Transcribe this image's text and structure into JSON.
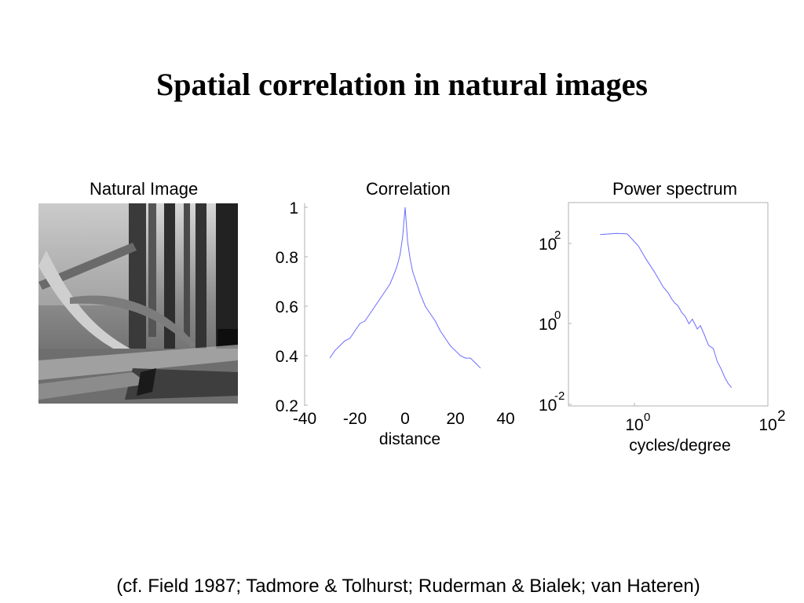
{
  "slide": {
    "title": "Spatial correlation in natural images",
    "citation": "(cf. Field 1987; Tadmore & Tolhurst; Ruderman & Bialek; van Hateren)"
  },
  "image_panel": {
    "title": "Natural Image"
  },
  "chart_data": [
    {
      "type": "line",
      "title": "Correlation",
      "xlabel": "distance",
      "ylabel": "",
      "xlim": [
        -40,
        40
      ],
      "ylim": [
        0.2,
        1
      ],
      "xticks": [
        "-40",
        "-20",
        "0",
        "20",
        "40"
      ],
      "yticks": [
        "0.2",
        "0.4",
        "0.6",
        "0.8",
        "1"
      ],
      "color": "#6b6bff",
      "x": [
        -30,
        -28,
        -26,
        -24,
        -22,
        -20,
        -18,
        -16,
        -14,
        -12,
        -10,
        -8,
        -6,
        -4,
        -3,
        -2,
        -1,
        0,
        1,
        2,
        3,
        4,
        6,
        8,
        10,
        12,
        14,
        16,
        18,
        20,
        22,
        24,
        26,
        28,
        30
      ],
      "y": [
        0.39,
        0.42,
        0.44,
        0.46,
        0.47,
        0.5,
        0.53,
        0.54,
        0.57,
        0.6,
        0.63,
        0.66,
        0.69,
        0.74,
        0.77,
        0.81,
        0.88,
        1.0,
        0.86,
        0.79,
        0.74,
        0.71,
        0.65,
        0.6,
        0.57,
        0.54,
        0.5,
        0.47,
        0.44,
        0.42,
        0.4,
        0.39,
        0.39,
        0.37,
        0.35
      ]
    },
    {
      "type": "line",
      "title": "Power spectrum",
      "xlabel": "cycles/degree",
      "ylabel": "",
      "xscale": "log",
      "yscale": "log",
      "xlim": [
        0.3,
        2.5
      ],
      "ylim": [
        0.01,
        900
      ],
      "xticks": [
        {
          "base": "10",
          "exp": "0"
        },
        {
          "base": "10",
          "exp": "2"
        }
      ],
      "yticks": [
        {
          "base": "10",
          "exp": "-2"
        },
        {
          "base": "10",
          "exp": "0"
        },
        {
          "base": "10",
          "exp": "2"
        }
      ],
      "color": "#6b6bff",
      "x": [
        0.42,
        0.5,
        0.56,
        0.63,
        0.68,
        0.75,
        0.82,
        0.87,
        0.9,
        0.93,
        0.96,
        1.0,
        1.04,
        1.08,
        1.12,
        1.18,
        1.22,
        1.27,
        1.33,
        1.4,
        1.46,
        1.52,
        1.58,
        1.64,
        1.7
      ],
      "y": [
        150,
        160,
        155,
        80,
        40,
        18,
        8,
        5.5,
        4,
        3.2,
        2.8,
        1.9,
        1.5,
        1.0,
        1.3,
        0.75,
        0.9,
        0.55,
        0.3,
        0.25,
        0.12,
        0.08,
        0.05,
        0.035,
        0.028
      ]
    }
  ]
}
